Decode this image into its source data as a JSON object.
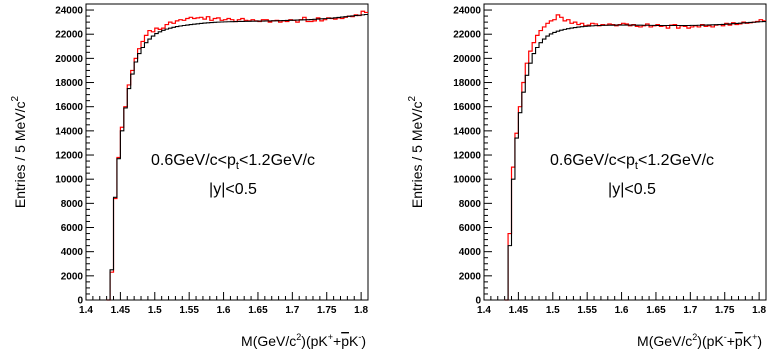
{
  "chart_data": [
    {
      "type": "line",
      "xlim": [
        1.4,
        1.81
      ],
      "ylim": [
        0,
        24500
      ],
      "xticks": [
        "1.4",
        "1.45",
        "1.5",
        "1.55",
        "1.6",
        "1.65",
        "1.7",
        "1.75",
        "1.8"
      ],
      "yticks": [
        "0",
        "2000",
        "4000",
        "6000",
        "8000",
        "10000",
        "12000",
        "14000",
        "16000",
        "18000",
        "20000",
        "22000",
        "24000"
      ],
      "ylabel": {
        "main": "Entries / 5 MeV/c",
        "sup": "2"
      },
      "xlabel": {
        "a": "M(GeV/c",
        "a_sup": "2",
        "b": ")(pK",
        "b_sup": "+",
        "c": "+",
        "c_bar": "p",
        "d": "K",
        "d_sup": "-",
        "e": ")"
      },
      "annotation": {
        "a": "0.6GeV/c<p",
        "sub": "t",
        "b": "<1.2GeV/c",
        "line2": "|y|<0.5"
      },
      "grid": false,
      "series": [
        {
          "color": "#ff0000",
          "x": [
            1.43,
            1.435,
            1.44,
            1.445,
            1.45,
            1.455,
            1.46,
            1.465,
            1.47,
            1.475,
            1.48,
            1.485,
            1.49,
            1.495,
            1.5,
            1.505,
            1.51,
            1.515,
            1.52,
            1.525,
            1.53,
            1.535,
            1.54,
            1.545,
            1.55,
            1.555,
            1.56,
            1.565,
            1.57,
            1.575,
            1.58,
            1.585,
            1.59,
            1.595,
            1.6,
            1.605,
            1.61,
            1.615,
            1.62,
            1.625,
            1.63,
            1.635,
            1.64,
            1.645,
            1.65,
            1.655,
            1.66,
            1.665,
            1.67,
            1.675,
            1.68,
            1.685,
            1.69,
            1.695,
            1.7,
            1.705,
            1.71,
            1.715,
            1.72,
            1.725,
            1.73,
            1.735,
            1.74,
            1.745,
            1.75,
            1.755,
            1.76,
            1.765,
            1.77,
            1.775,
            1.78,
            1.785,
            1.79,
            1.795,
            1.8,
            1.805
          ],
          "y": [
            0,
            2300,
            8400,
            11800,
            14300,
            16000,
            17800,
            19000,
            20000,
            20800,
            21400,
            21900,
            22300,
            22200,
            22500,
            22400,
            22500,
            22800,
            23000,
            22900,
            23100,
            23200,
            23150,
            23300,
            23400,
            23300,
            23350,
            23400,
            23250,
            23450,
            23150,
            23300,
            23350,
            23150,
            23200,
            23300,
            23200,
            23050,
            23200,
            23300,
            23150,
            23100,
            23200,
            23100,
            23050,
            23200,
            23200,
            23000,
            23100,
            23150,
            23000,
            23100,
            23050,
            23200,
            23150,
            23000,
            23200,
            23400,
            23050,
            23050,
            23100,
            23350,
            23100,
            23200,
            23350,
            23300,
            23250,
            23350,
            23300,
            23400,
            23500,
            23450,
            23600,
            23550,
            23900,
            23800
          ]
        },
        {
          "color": "#000000",
          "x": [
            1.43,
            1.435,
            1.44,
            1.445,
            1.45,
            1.455,
            1.46,
            1.465,
            1.47,
            1.475,
            1.48,
            1.485,
            1.49,
            1.495,
            1.5,
            1.505,
            1.51,
            1.515,
            1.52,
            1.525,
            1.53,
            1.535,
            1.54,
            1.545,
            1.55,
            1.555,
            1.56,
            1.565,
            1.57,
            1.575,
            1.58,
            1.585,
            1.59,
            1.595,
            1.6,
            1.605,
            1.61,
            1.615,
            1.62,
            1.625,
            1.63,
            1.635,
            1.64,
            1.645,
            1.65,
            1.655,
            1.66,
            1.665,
            1.67,
            1.675,
            1.68,
            1.685,
            1.69,
            1.695,
            1.7,
            1.705,
            1.71,
            1.715,
            1.72,
            1.725,
            1.73,
            1.735,
            1.74,
            1.745,
            1.75,
            1.755,
            1.76,
            1.765,
            1.77,
            1.775,
            1.78,
            1.785,
            1.79,
            1.795,
            1.8,
            1.805
          ],
          "y": [
            0,
            2500,
            8500,
            11700,
            14000,
            15900,
            17500,
            18700,
            19700,
            20400,
            20900,
            21300,
            21600,
            21850,
            22050,
            22200,
            22320,
            22420,
            22500,
            22570,
            22630,
            22680,
            22720,
            22760,
            22800,
            22830,
            22860,
            22890,
            22920,
            22940,
            22960,
            22980,
            23000,
            23010,
            23020,
            23030,
            23040,
            23050,
            23060,
            23060,
            23070,
            23070,
            23080,
            23080,
            23090,
            23090,
            23100,
            23100,
            23110,
            23110,
            23120,
            23130,
            23140,
            23150,
            23160,
            23170,
            23180,
            23190,
            23200,
            23210,
            23230,
            23250,
            23270,
            23290,
            23310,
            23330,
            23360,
            23390,
            23420,
            23450,
            23480,
            23510,
            23540,
            23570,
            23600,
            23630
          ]
        }
      ]
    },
    {
      "type": "line",
      "xlim": [
        1.4,
        1.81
      ],
      "ylim": [
        0,
        24500
      ],
      "xticks": [
        "1.4",
        "1.45",
        "1.5",
        "1.55",
        "1.6",
        "1.65",
        "1.7",
        "1.75",
        "1.8"
      ],
      "yticks": [
        "0",
        "2000",
        "4000",
        "6000",
        "8000",
        "10000",
        "12000",
        "14000",
        "16000",
        "18000",
        "20000",
        "22000",
        "24000"
      ],
      "ylabel": {
        "main": "Entries / 5 MeV/c",
        "sup": "2"
      },
      "xlabel": {
        "a": "M(GeV/c",
        "a_sup": "2",
        "b": ")(pK",
        "b_sup": "-",
        "c": "+",
        "c_bar": "p",
        "d": "K",
        "d_sup": "+",
        "e": ")"
      },
      "annotation": {
        "a": "0.6GeV/c<p",
        "sub": "t",
        "b": "<1.2GeV/c",
        "line2": "|y|<0.5"
      },
      "grid": false,
      "series": [
        {
          "color": "#ff0000",
          "x": [
            1.43,
            1.435,
            1.44,
            1.445,
            1.45,
            1.455,
            1.46,
            1.465,
            1.47,
            1.475,
            1.48,
            1.485,
            1.49,
            1.495,
            1.5,
            1.505,
            1.51,
            1.515,
            1.52,
            1.525,
            1.53,
            1.535,
            1.54,
            1.545,
            1.55,
            1.555,
            1.56,
            1.565,
            1.57,
            1.575,
            1.58,
            1.585,
            1.59,
            1.595,
            1.6,
            1.605,
            1.61,
            1.615,
            1.62,
            1.625,
            1.63,
            1.635,
            1.64,
            1.645,
            1.65,
            1.655,
            1.66,
            1.665,
            1.67,
            1.675,
            1.68,
            1.685,
            1.69,
            1.695,
            1.7,
            1.705,
            1.71,
            1.715,
            1.72,
            1.725,
            1.73,
            1.735,
            1.74,
            1.745,
            1.75,
            1.755,
            1.76,
            1.765,
            1.77,
            1.775,
            1.78,
            1.785,
            1.79,
            1.795,
            1.8,
            1.805
          ],
          "y": [
            0,
            5500,
            11000,
            13800,
            16000,
            18000,
            19600,
            20600,
            21300,
            21900,
            22300,
            22600,
            22900,
            23100,
            23200,
            23600,
            23400,
            23100,
            23200,
            22900,
            23000,
            22800,
            22900,
            22700,
            22750,
            22900,
            22850,
            22700,
            22800,
            22750,
            22850,
            22800,
            22700,
            22800,
            22900,
            22850,
            22700,
            22800,
            22650,
            22600,
            22700,
            22850,
            22600,
            22700,
            22800,
            22650,
            22700,
            22500,
            22750,
            22800,
            22500,
            22700,
            22650,
            22500,
            22600,
            22700,
            22600,
            22800,
            22650,
            22700,
            22600,
            22750,
            22800,
            22700,
            22900,
            22750,
            22950,
            22800,
            22850,
            23000,
            22900,
            22950,
            23000,
            23050,
            23200,
            23100
          ]
        },
        {
          "color": "#000000",
          "x": [
            1.43,
            1.435,
            1.44,
            1.445,
            1.45,
            1.455,
            1.46,
            1.465,
            1.47,
            1.475,
            1.48,
            1.485,
            1.49,
            1.495,
            1.5,
            1.505,
            1.51,
            1.515,
            1.52,
            1.525,
            1.53,
            1.535,
            1.54,
            1.545,
            1.55,
            1.555,
            1.56,
            1.565,
            1.57,
            1.575,
            1.58,
            1.585,
            1.59,
            1.595,
            1.6,
            1.605,
            1.61,
            1.615,
            1.62,
            1.625,
            1.63,
            1.635,
            1.64,
            1.645,
            1.65,
            1.655,
            1.66,
            1.665,
            1.67,
            1.675,
            1.68,
            1.685,
            1.69,
            1.695,
            1.7,
            1.705,
            1.71,
            1.715,
            1.72,
            1.725,
            1.73,
            1.735,
            1.74,
            1.745,
            1.75,
            1.755,
            1.76,
            1.765,
            1.77,
            1.775,
            1.78,
            1.785,
            1.79,
            1.795,
            1.8,
            1.805
          ],
          "y": [
            0,
            4500,
            10000,
            13400,
            15500,
            17200,
            18600,
            19600,
            20400,
            20900,
            21300,
            21600,
            21850,
            22020,
            22150,
            22250,
            22330,
            22400,
            22460,
            22510,
            22550,
            22590,
            22620,
            22650,
            22670,
            22690,
            22710,
            22720,
            22730,
            22740,
            22750,
            22750,
            22760,
            22760,
            22760,
            22760,
            22760,
            22760,
            22750,
            22750,
            22740,
            22740,
            22730,
            22730,
            22720,
            22720,
            22720,
            22720,
            22720,
            22720,
            22720,
            22720,
            22720,
            22720,
            22730,
            22730,
            22740,
            22750,
            22760,
            22770,
            22780,
            22790,
            22800,
            22810,
            22830,
            22850,
            22870,
            22890,
            22910,
            22930,
            22950,
            22970,
            22990,
            23010,
            23030,
            23050
          ]
        }
      ]
    }
  ]
}
